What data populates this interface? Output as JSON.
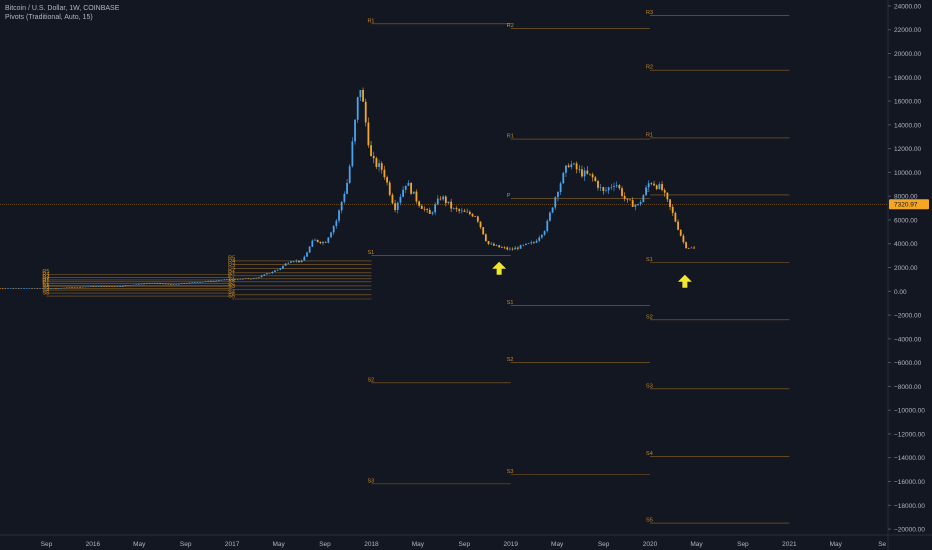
{
  "header": {
    "symbol_title": "Bitcoin / U.S. Dollar, 1W, COINBASE",
    "indicator_title": "Pivots (Traditional, Auto, 15)"
  },
  "colors": {
    "background": "#131722",
    "up_candle": "#4aa3f0",
    "down_candle": "#f5a623",
    "pivot_line": "#f5a623",
    "axis_text": "#b2b5be",
    "price_badge": "#f5a623",
    "arrow": "#f3e62b"
  },
  "chart_data": {
    "type": "candlestick",
    "title": "Bitcoin / U.S. Dollar, 1W, COINBASE",
    "indicator": "Pivots (Traditional, Auto, 15)",
    "x_axis": {
      "tick_labels": [
        "Sep",
        "2016",
        "May",
        "Sep",
        "2017",
        "May",
        "Sep",
        "2018",
        "May",
        "Sep",
        "2019",
        "May",
        "Sep",
        "2020",
        "May",
        "Sep",
        "2021",
        "May",
        "Se"
      ],
      "range": [
        "2015-05",
        "2021-09"
      ]
    },
    "y_axis": {
      "range": [
        -20500,
        24500
      ],
      "ticks": [
        24000,
        22000,
        20000,
        18000,
        16000,
        14000,
        12000,
        10000,
        8000,
        6000,
        4000,
        2000,
        0,
        -2000,
        -4000,
        -6000,
        -8000,
        -10000,
        -12000,
        -14000,
        -16000,
        -18000,
        -20000
      ],
      "tick_labels": [
        "24000.00",
        "22000.00",
        "20000.00",
        "18000.00",
        "16000.00",
        "14000.00",
        "12000.00",
        "10000.00",
        "8000.00",
        "6000.00",
        "4000.00",
        "2000.00",
        "0.00",
        "−2000.00",
        "−4000.00",
        "−6000.00",
        "−8000.00",
        "−10000.00",
        "−12000.00",
        "−14000.00",
        "−16000.00",
        "−18000.00",
        "−20000.00"
      ]
    },
    "last_price": 7320.97,
    "last_price_label": "7320.97",
    "price_path": [
      [
        "2015-05",
        240
      ],
      [
        "2015-10",
        270
      ],
      [
        "2016-01",
        420
      ],
      [
        "2016-03",
        410
      ],
      [
        "2016-06",
        700
      ],
      [
        "2016-08",
        580
      ],
      [
        "2016-12",
        950
      ],
      [
        "2017-01",
        990
      ],
      [
        "2017-03",
        1100
      ],
      [
        "2017-05",
        1850
      ],
      [
        "2017-06",
        2600
      ],
      [
        "2017-07",
        2500
      ],
      [
        "2017-08",
        4300
      ],
      [
        "2017-09",
        4100
      ],
      [
        "2017-10",
        6000
      ],
      [
        "2017-11",
        9500
      ],
      [
        "2017-12",
        17500
      ],
      [
        "2018-01",
        11000
      ],
      [
        "2018-02",
        10200
      ],
      [
        "2018-03",
        7000
      ],
      [
        "2018-04",
        9200
      ],
      [
        "2018-05",
        7500
      ],
      [
        "2018-06",
        6400
      ],
      [
        "2018-07",
        8000
      ],
      [
        "2018-08",
        6900
      ],
      [
        "2018-09",
        6600
      ],
      [
        "2018-10",
        6400
      ],
      [
        "2018-11",
        4000
      ],
      [
        "2018-12",
        3700
      ],
      [
        "2019-01",
        3500
      ],
      [
        "2019-02",
        3800
      ],
      [
        "2019-03",
        4100
      ],
      [
        "2019-04",
        5300
      ],
      [
        "2019-05",
        8500
      ],
      [
        "2019-06",
        10800
      ],
      [
        "2019-07",
        10000
      ],
      [
        "2019-08",
        9600
      ],
      [
        "2019-09",
        8300
      ],
      [
        "2019-10",
        9200
      ],
      [
        "2019-11",
        7500
      ],
      [
        "2019-12",
        7200
      ],
      [
        "2020-01",
        9300
      ],
      [
        "2020-02",
        8600
      ],
      [
        "2020-03",
        6400
      ],
      [
        "2020-04",
        3800
      ],
      [
        "2020-05",
        3500
      ]
    ],
    "pivot_levels": [
      {
        "period": "2015-2016",
        "from": "2015-09",
        "to": "2016-12",
        "levels": [
          {
            "label": "R5",
            "value": 1400
          },
          {
            "label": "R4",
            "value": 1150
          },
          {
            "label": "R3",
            "value": 950
          },
          {
            "label": "R2",
            "value": 800
          },
          {
            "label": "R1",
            "value": 650
          },
          {
            "label": "P",
            "value": 500
          },
          {
            "label": "S1",
            "value": 380
          },
          {
            "label": "S2",
            "value": 250
          },
          {
            "label": "S3",
            "value": 100
          },
          {
            "label": "S4",
            "value": -150
          },
          {
            "label": "S5",
            "value": -400
          }
        ]
      },
      {
        "period": "2017",
        "from": "2017-01",
        "to": "2017-12",
        "levels": [
          {
            "label": "R5",
            "value": 2550
          },
          {
            "label": "R4",
            "value": 2250
          },
          {
            "label": "R3",
            "value": 1900
          },
          {
            "label": "R2",
            "value": 1550
          },
          {
            "label": "R1",
            "value": 1300
          },
          {
            "label": "P",
            "value": 1050
          },
          {
            "label": "S1",
            "value": 800
          },
          {
            "label": "S2",
            "value": 450
          },
          {
            "label": "S3",
            "value": 150
          },
          {
            "label": "S4",
            "value": -300
          },
          {
            "label": "S5",
            "value": -650
          }
        ]
      },
      {
        "period": "2018",
        "from": "2018-01",
        "to": "2018-12",
        "levels": [
          {
            "label": "R1",
            "value": 22500
          },
          {
            "label": "S1",
            "value": 3000
          },
          {
            "label": "S2",
            "value": -7700
          },
          {
            "label": "S3",
            "value": -16200
          }
        ]
      },
      {
        "period": "2019",
        "from": "2019-01",
        "to": "2019-12",
        "levels": [
          {
            "label": "R2",
            "value": 22100
          },
          {
            "label": "R1",
            "value": 12800
          },
          {
            "label": "P",
            "value": 7800
          },
          {
            "label": "S1",
            "value": -1200
          },
          {
            "label": "S2",
            "value": -6000
          },
          {
            "label": "S3",
            "value": -15400
          }
        ]
      },
      {
        "period": "2020",
        "from": "2020-01",
        "to": "2020-12",
        "levels": [
          {
            "label": "R3",
            "value": 23200
          },
          {
            "label": "R2",
            "value": 18600
          },
          {
            "label": "R1",
            "value": 12900
          },
          {
            "label": "P",
            "value": 8100
          },
          {
            "label": "S1",
            "value": 2400
          },
          {
            "label": "S2",
            "value": -2400
          },
          {
            "label": "S3",
            "value": -8200
          },
          {
            "label": "S4",
            "value": -13900
          },
          {
            "label": "S5",
            "value": -19500
          }
        ]
      }
    ],
    "annotations": [
      {
        "type": "arrow-up",
        "x": "2018-12",
        "y": 1900
      },
      {
        "type": "arrow-up",
        "x": "2020-04",
        "y": 800
      }
    ]
  }
}
